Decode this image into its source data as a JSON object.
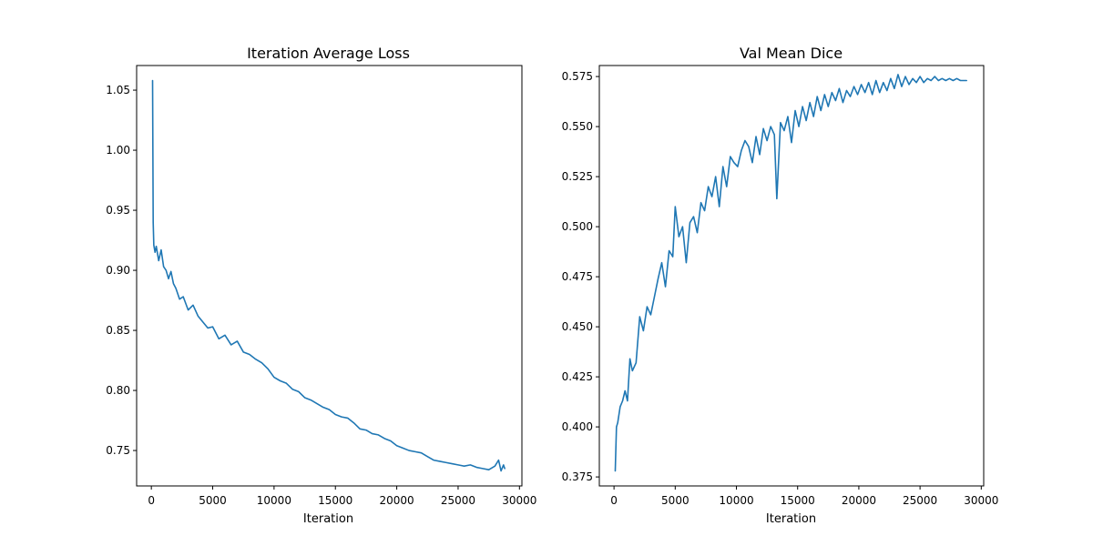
{
  "colors": {
    "line": "#1f77b4",
    "axes": "#000000",
    "background": "#ffffff"
  },
  "chart_data": [
    {
      "type": "line",
      "title": "Iteration Average Loss",
      "xlabel": "Iteration",
      "ylabel": "",
      "xlim": [
        -1200,
        30200
      ],
      "ylim": [
        0.7205,
        1.0705
      ],
      "xticks": [
        0,
        5000,
        10000,
        15000,
        20000,
        25000,
        30000
      ],
      "yticks": [
        0.75,
        0.8,
        0.85,
        0.9,
        0.95,
        1.0,
        1.05
      ],
      "xtick_labels": [
        "0",
        "5000",
        "10000",
        "15000",
        "20000",
        "25000",
        "30000"
      ],
      "ytick_labels": [
        "0.75",
        "0.80",
        "0.85",
        "0.90",
        "0.95",
        "1.00",
        "1.05"
      ],
      "grid": false,
      "series": [
        {
          "x": [
            100,
            150,
            200,
            300,
            400,
            600,
            800,
            1000,
            1200,
            1400,
            1600,
            1800,
            2000,
            2300,
            2600,
            3000,
            3400,
            3800,
            4200,
            4600,
            5000,
            5500,
            6000,
            6500,
            7000,
            7500,
            8000,
            8500,
            9000,
            9500,
            10000,
            10500,
            11000,
            11500,
            12000,
            12500,
            13000,
            13500,
            14000,
            14500,
            15000,
            15500,
            16000,
            16500,
            17000,
            17500,
            18000,
            18500,
            19000,
            19500,
            20000,
            20500,
            21000,
            21500,
            22000,
            22500,
            23000,
            23500,
            24000,
            24500,
            25000,
            25500,
            26000,
            26500,
            27000,
            27500,
            28000,
            28300,
            28500,
            28700,
            28800
          ],
          "y": [
            1.058,
            0.94,
            0.921,
            0.915,
            0.92,
            0.908,
            0.917,
            0.903,
            0.9,
            0.893,
            0.899,
            0.889,
            0.885,
            0.876,
            0.878,
            0.867,
            0.871,
            0.862,
            0.857,
            0.852,
            0.853,
            0.843,
            0.846,
            0.838,
            0.841,
            0.832,
            0.83,
            0.826,
            0.823,
            0.818,
            0.811,
            0.808,
            0.806,
            0.801,
            0.799,
            0.794,
            0.792,
            0.789,
            0.786,
            0.784,
            0.78,
            0.778,
            0.777,
            0.773,
            0.768,
            0.767,
            0.764,
            0.763,
            0.76,
            0.758,
            0.754,
            0.752,
            0.75,
            0.749,
            0.748,
            0.745,
            0.742,
            0.741,
            0.74,
            0.739,
            0.738,
            0.737,
            0.738,
            0.736,
            0.735,
            0.734,
            0.737,
            0.742,
            0.733,
            0.738,
            0.735
          ]
        }
      ]
    },
    {
      "type": "line",
      "title": "Val Mean Dice",
      "xlabel": "Iteration",
      "ylabel": "",
      "xlim": [
        -1200,
        30200
      ],
      "ylim": [
        0.3705,
        0.5805
      ],
      "xticks": [
        0,
        5000,
        10000,
        15000,
        20000,
        25000,
        30000
      ],
      "yticks": [
        0.375,
        0.4,
        0.425,
        0.45,
        0.475,
        0.5,
        0.525,
        0.55,
        0.575
      ],
      "xtick_labels": [
        "0",
        "5000",
        "10000",
        "15000",
        "20000",
        "25000",
        "30000"
      ],
      "ytick_labels": [
        "0.375",
        "0.400",
        "0.425",
        "0.450",
        "0.475",
        "0.500",
        "0.525",
        "0.550",
        "0.575"
      ],
      "grid": false,
      "series": [
        {
          "x": [
            100,
            200,
            300,
            500,
            700,
            900,
            1100,
            1300,
            1500,
            1800,
            2100,
            2400,
            2700,
            3000,
            3300,
            3600,
            3900,
            4200,
            4500,
            4800,
            5000,
            5300,
            5600,
            5900,
            6200,
            6500,
            6800,
            7100,
            7400,
            7700,
            8000,
            8300,
            8600,
            8900,
            9200,
            9500,
            9800,
            10100,
            10400,
            10700,
            11000,
            11300,
            11600,
            11900,
            12200,
            12500,
            12800,
            13100,
            13300,
            13600,
            13900,
            14200,
            14500,
            14800,
            15100,
            15400,
            15700,
            16000,
            16300,
            16600,
            16900,
            17200,
            17500,
            17800,
            18100,
            18400,
            18700,
            19000,
            19300,
            19600,
            19900,
            20200,
            20500,
            20800,
            21100,
            21400,
            21700,
            22000,
            22300,
            22600,
            22900,
            23200,
            23500,
            23800,
            24100,
            24400,
            24700,
            25000,
            25300,
            25600,
            25900,
            26200,
            26500,
            26800,
            27100,
            27400,
            27700,
            28000,
            28300,
            28600,
            28800
          ],
          "y": [
            0.378,
            0.4,
            0.402,
            0.41,
            0.413,
            0.418,
            0.413,
            0.434,
            0.428,
            0.432,
            0.455,
            0.448,
            0.46,
            0.456,
            0.465,
            0.474,
            0.482,
            0.47,
            0.488,
            0.485,
            0.51,
            0.495,
            0.5,
            0.482,
            0.502,
            0.505,
            0.497,
            0.512,
            0.508,
            0.52,
            0.515,
            0.525,
            0.51,
            0.53,
            0.52,
            0.535,
            0.532,
            0.53,
            0.538,
            0.543,
            0.54,
            0.532,
            0.545,
            0.536,
            0.549,
            0.543,
            0.55,
            0.546,
            0.514,
            0.552,
            0.548,
            0.555,
            0.542,
            0.558,
            0.55,
            0.56,
            0.553,
            0.562,
            0.555,
            0.565,
            0.558,
            0.566,
            0.56,
            0.567,
            0.563,
            0.569,
            0.562,
            0.568,
            0.565,
            0.57,
            0.566,
            0.571,
            0.567,
            0.572,
            0.566,
            0.573,
            0.567,
            0.572,
            0.568,
            0.574,
            0.569,
            0.576,
            0.57,
            0.575,
            0.571,
            0.574,
            0.572,
            0.575,
            0.572,
            0.574,
            0.573,
            0.575,
            0.573,
            0.574,
            0.573,
            0.574,
            0.573,
            0.574,
            0.573,
            0.573,
            0.573
          ]
        }
      ]
    }
  ]
}
